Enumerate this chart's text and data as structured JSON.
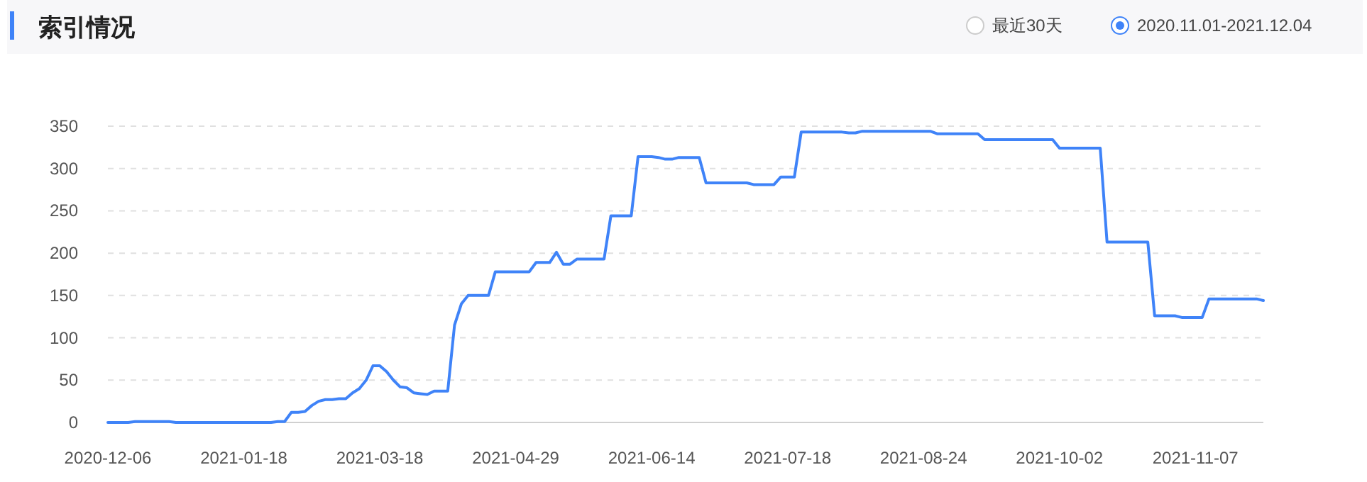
{
  "chart_data": {
    "type": "line",
    "title": "索引情况",
    "annotations": [
      "最近30天",
      "2020.11.01-2021.12.04"
    ],
    "categories": [
      "2020-12-06",
      null,
      null,
      null,
      null,
      null,
      null,
      null,
      null,
      null,
      null,
      null,
      null,
      null,
      null,
      null,
      null,
      null,
      null,
      null,
      "2021-01-18",
      null,
      null,
      null,
      null,
      null,
      null,
      null,
      null,
      null,
      null,
      null,
      null,
      null,
      null,
      null,
      null,
      null,
      null,
      null,
      "2021-03-18",
      null,
      null,
      null,
      null,
      null,
      null,
      null,
      null,
      null,
      null,
      null,
      null,
      null,
      null,
      null,
      null,
      null,
      null,
      null,
      "2021-04-29",
      null,
      null,
      null,
      null,
      null,
      null,
      null,
      null,
      null,
      null,
      null,
      null,
      null,
      null,
      null,
      null,
      null,
      null,
      null,
      "2021-06-14",
      null,
      null,
      null,
      null,
      null,
      null,
      null,
      null,
      null,
      null,
      null,
      null,
      null,
      null,
      null,
      null,
      null,
      null,
      null,
      "2021-07-18",
      null,
      null,
      null,
      null,
      null,
      null,
      null,
      null,
      null,
      null,
      null,
      null,
      null,
      null,
      null,
      null,
      null,
      null,
      null,
      "2021-08-24",
      null,
      null,
      null,
      null,
      null,
      null,
      null,
      null,
      null,
      null,
      null,
      null,
      null,
      null,
      null,
      null,
      null,
      null,
      null,
      "2021-10-02",
      null,
      null,
      null,
      null,
      null,
      null,
      null,
      null,
      null,
      null,
      null,
      null,
      null,
      null,
      null,
      null,
      null,
      null,
      null,
      "2021-11-07",
      null,
      null,
      null,
      null,
      null,
      null,
      null,
      null,
      null,
      null
    ],
    "series": [
      {
        "color": "#3f83f8",
        "values": [
          0,
          0,
          0,
          0,
          1,
          1,
          1,
          1,
          1,
          1,
          0,
          0,
          0,
          0,
          0,
          0,
          0,
          0,
          0,
          0,
          0,
          0,
          0,
          0,
          0,
          1,
          1,
          12,
          12,
          13,
          20,
          25,
          27,
          27,
          28,
          28,
          35,
          40,
          50,
          67,
          67,
          60,
          50,
          42,
          41,
          35,
          34,
          33,
          37,
          37,
          37,
          115,
          140,
          150,
          150,
          150,
          150,
          178,
          178,
          178,
          178,
          178,
          178,
          189,
          189,
          189,
          201,
          187,
          187,
          193,
          193,
          193,
          193,
          193,
          244,
          244,
          244,
          244,
          314,
          314,
          314,
          313,
          311,
          311,
          313,
          313,
          313,
          313,
          283,
          283,
          283,
          283,
          283,
          283,
          283,
          281,
          281,
          281,
          281,
          290,
          290,
          290,
          343,
          343,
          343,
          343,
          343,
          343,
          343,
          342,
          342,
          344,
          344,
          344,
          344,
          344,
          344,
          344,
          344,
          344,
          344,
          344,
          341,
          341,
          341,
          341,
          341,
          341,
          341,
          334,
          334,
          334,
          334,
          334,
          334,
          334,
          334,
          334,
          334,
          334,
          324,
          324,
          324,
          324,
          324,
          324,
          324,
          213,
          213,
          213,
          213,
          213,
          213,
          213,
          126,
          126,
          126,
          126,
          124,
          124,
          124,
          124,
          146,
          146,
          146,
          146,
          146,
          146,
          146,
          146,
          144
        ]
      }
    ],
    "ylim": [
      0,
      350
    ],
    "yticks": [
      0,
      50,
      100,
      150,
      200,
      250,
      300,
      350
    ],
    "grid": "y",
    "line_style": "solid"
  }
}
